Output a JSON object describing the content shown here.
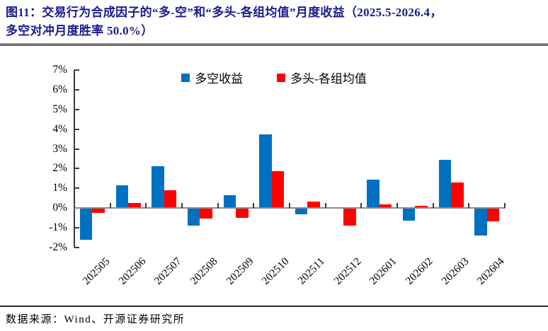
{
  "title": {
    "line1": "图11：交易行为合成因子的“多-空”和“多头-各组均值”月度收益（2025.5-2026.4，",
    "line2": "多空对冲月度胜率 50.0%）",
    "color": "#1b1b8e"
  },
  "footer": {
    "source_label": "数据来源：Wind、开源证券研究所"
  },
  "chart_data": {
    "type": "bar",
    "categories": [
      "202505",
      "202506",
      "202507",
      "202508",
      "202509",
      "202510",
      "202511",
      "202512",
      "202601",
      "202602",
      "202603",
      "202604"
    ],
    "series": [
      {
        "name": "多空收益",
        "color": "#0070C0",
        "values": [
          -1.6,
          1.1,
          2.1,
          -0.85,
          0.6,
          3.7,
          -0.3,
          0.0,
          1.4,
          -0.6,
          2.4,
          -1.35
        ]
      },
      {
        "name": "多头-各组均值",
        "color": "#FF0000",
        "values": [
          -0.2,
          0.2,
          0.85,
          -0.5,
          -0.45,
          1.85,
          0.3,
          -0.85,
          0.15,
          0.05,
          1.25,
          -0.65
        ]
      }
    ],
    "ylabel": "",
    "xlabel": "",
    "ylim": [
      -2,
      7
    ],
    "yticks": [
      7,
      6,
      5,
      4,
      3,
      2,
      1,
      0,
      -1,
      -2
    ],
    "ytick_suffix": "%",
    "grid": false,
    "legend_position": "top-center",
    "axis_color": "#3a3a3a",
    "zero_line_color": "#8a8a8a"
  }
}
